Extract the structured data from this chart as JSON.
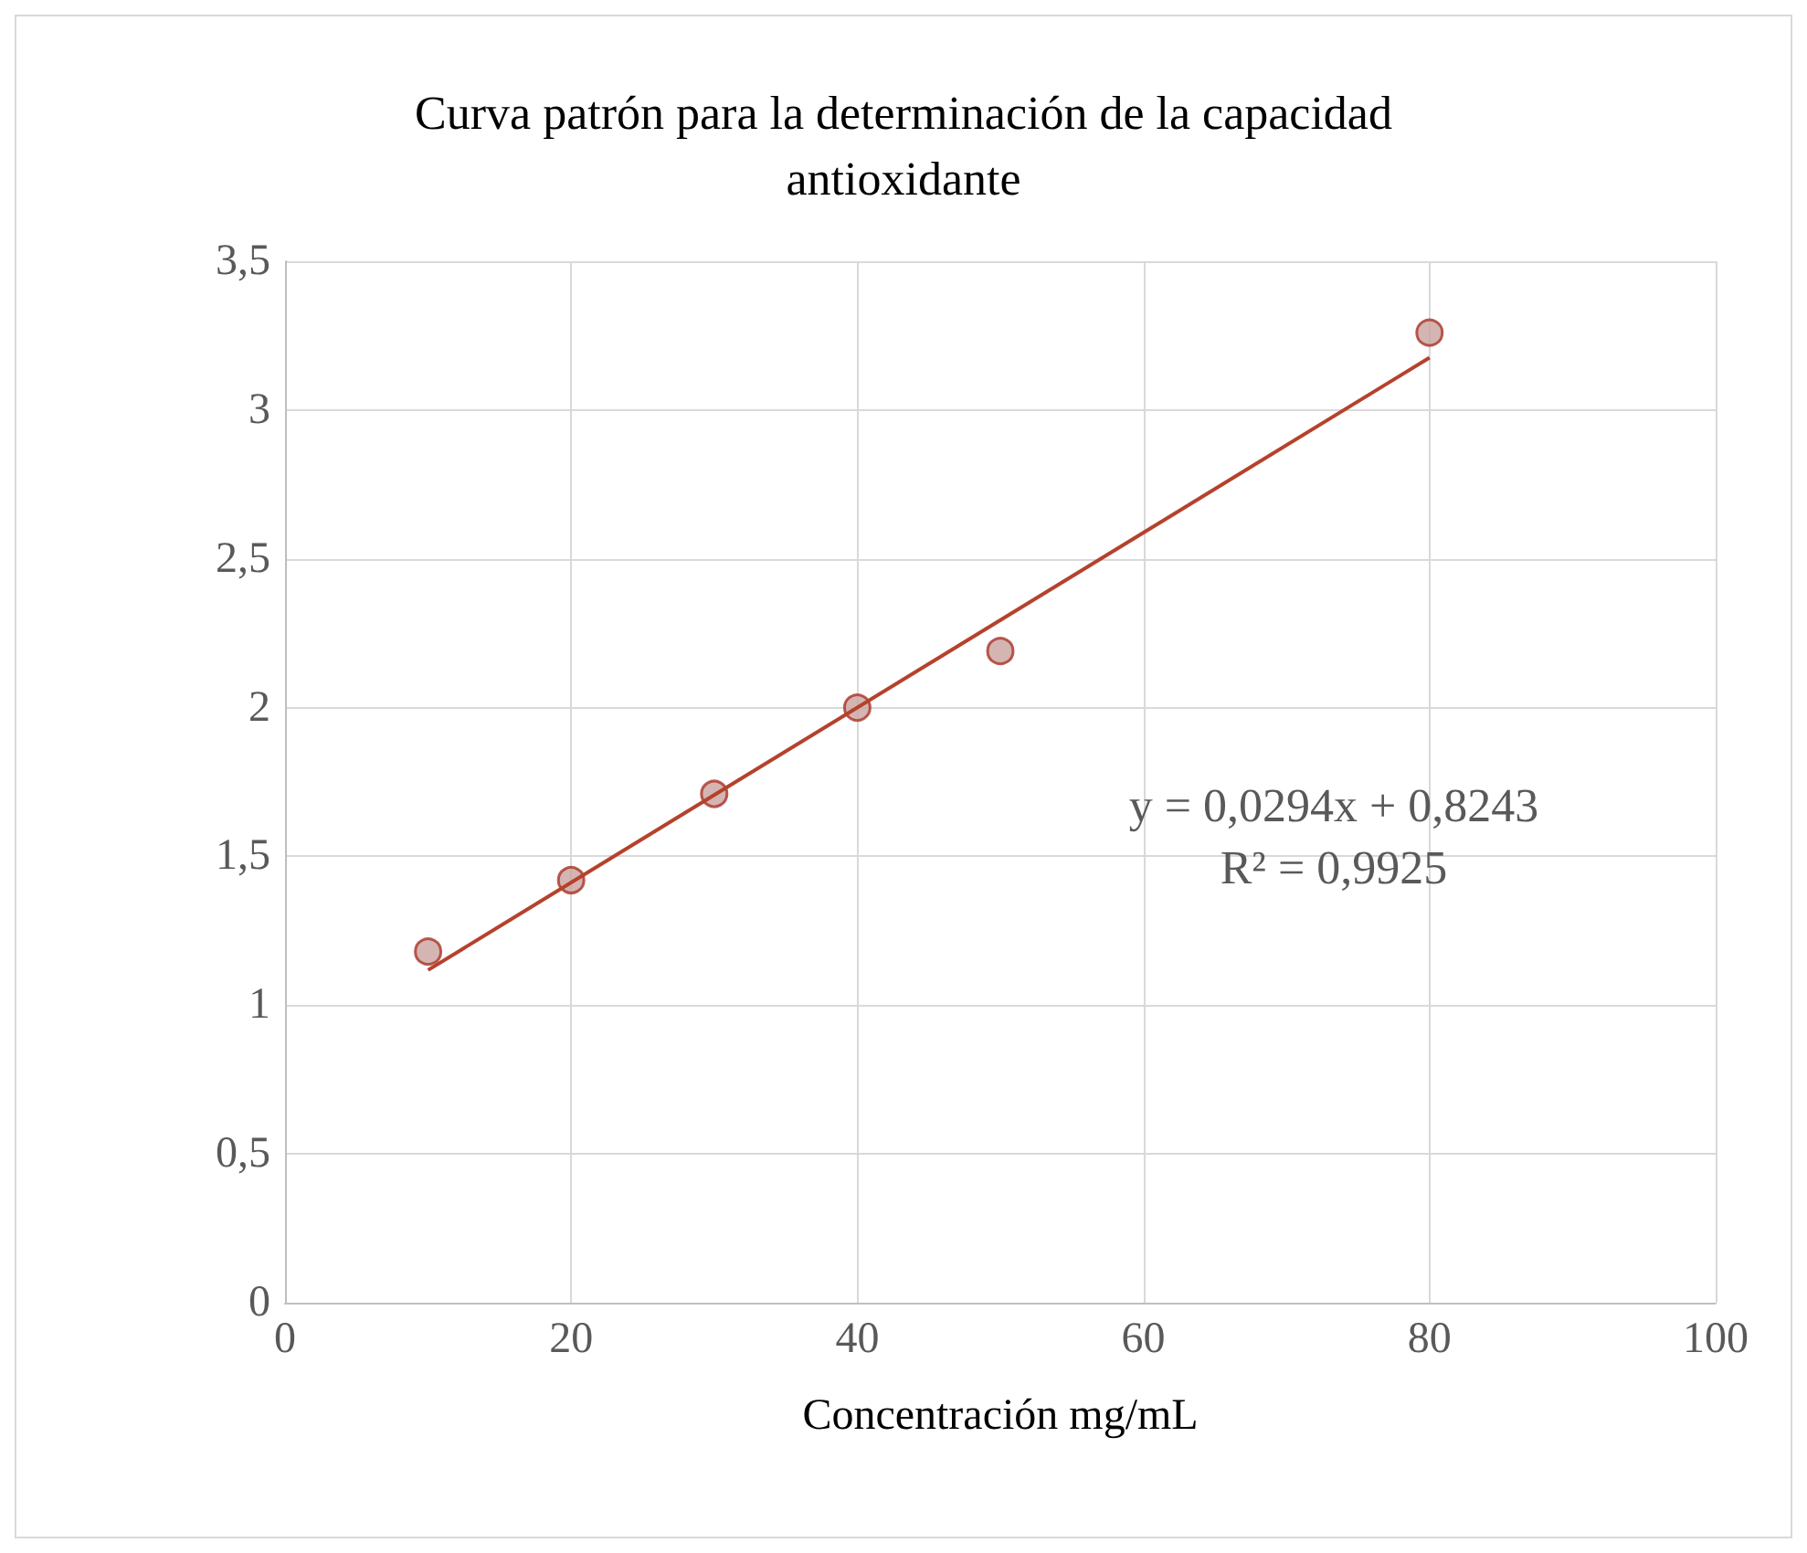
{
  "chart_data": {
    "type": "scatter",
    "title": "Curva patrón para la determinación de la capacidad\nantioxidante",
    "xlabel": "Concentración mg/mL",
    "x": [
      10,
      20,
      30,
      40,
      50,
      80
    ],
    "series": [
      {
        "color": "#c9a39d",
        "values": [
          1.18,
          1.42,
          1.71,
          2.0,
          2.19,
          3.26
        ]
      },
      {
        "type": "line",
        "color": "#b5422c",
        "x": [
          10,
          80
        ],
        "values": [
          1.118,
          3.176
        ],
        "marker": "none"
      }
    ],
    "xlim": [
      0,
      100
    ],
    "xticks": [
      0,
      20,
      40,
      60,
      80,
      100
    ],
    "ylim": [
      0,
      3.5
    ],
    "yticks": [
      0,
      {
        "value": 0.5,
        "label": "0,5"
      },
      1,
      {
        "value": 1.5,
        "label": "1,5"
      },
      2,
      {
        "value": 2.5,
        "label": "2,5"
      },
      3,
      {
        "value": 3.5,
        "label": "3,5"
      }
    ],
    "grid": true,
    "marker": "circle",
    "annotations": [
      "y = 0,0294x + 0,8243",
      "R² = 0,9925"
    ]
  }
}
